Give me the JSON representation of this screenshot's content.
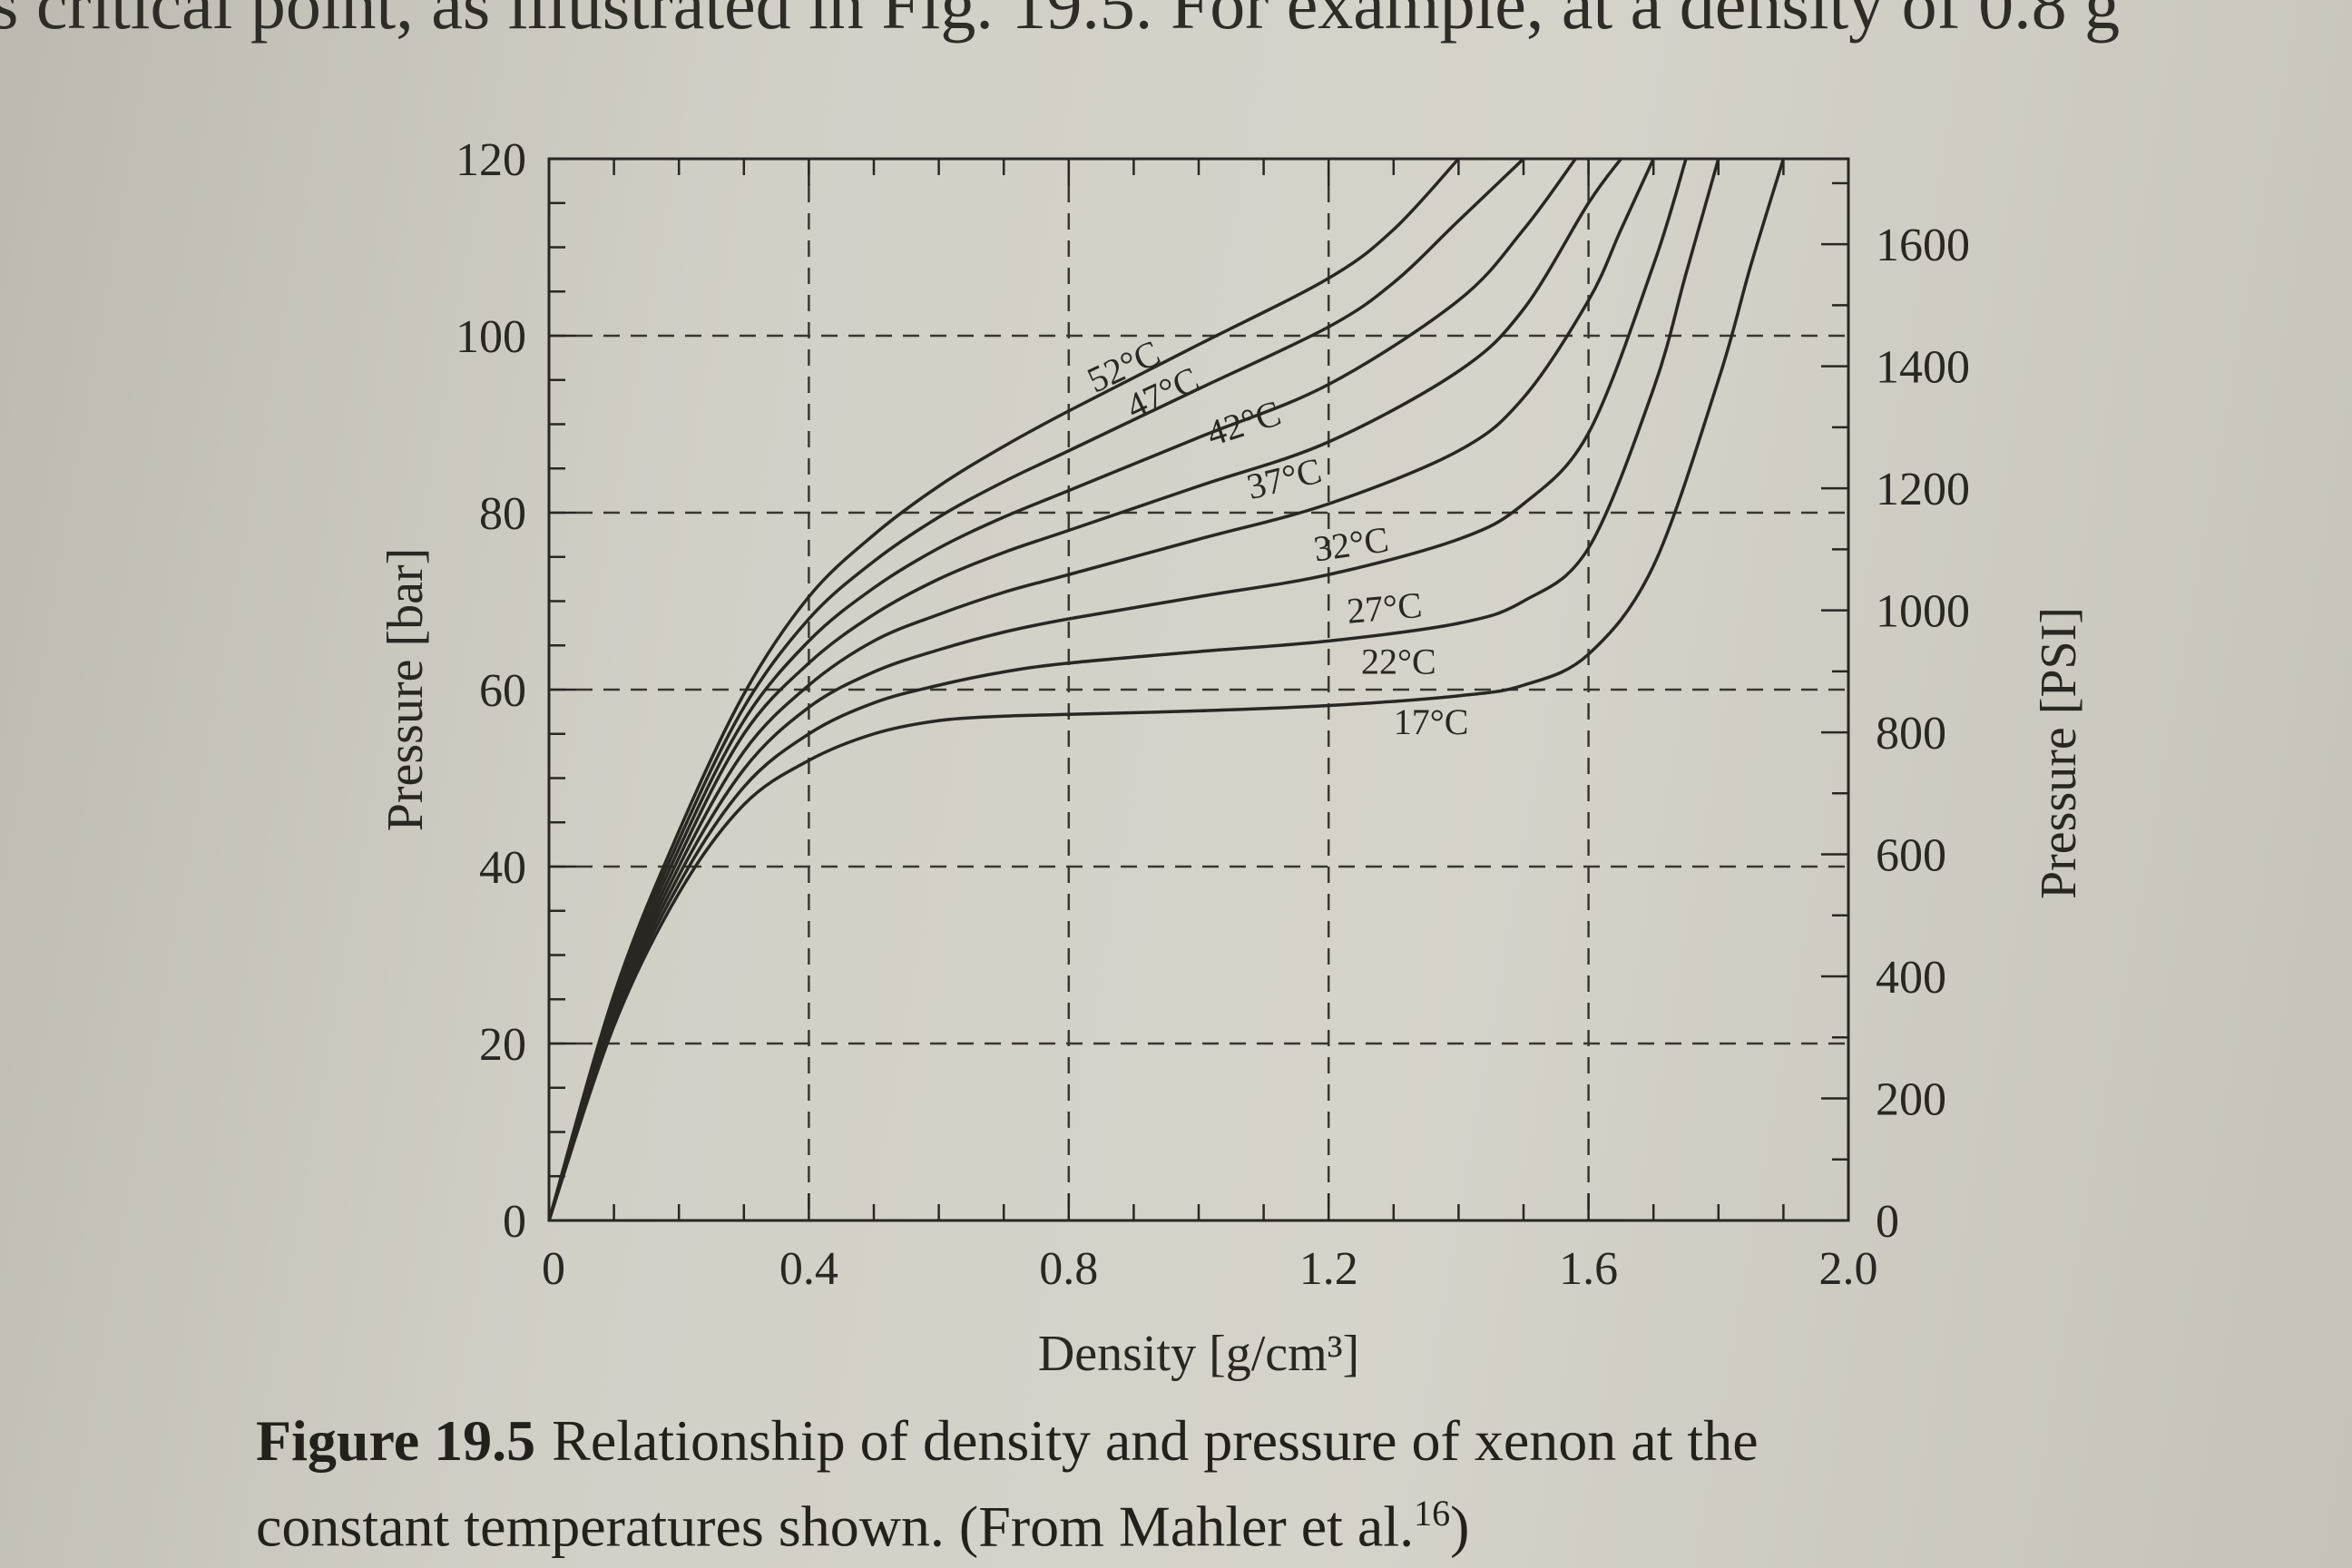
{
  "page": {
    "top_text": "s critical point, as illustrated in Fig. 19.5. For example, at a density of 0.8 g",
    "caption_label": "Figure 19.5",
    "caption_line1": "Relationship of density and pressure of xenon at the",
    "caption_line2": "constant temperatures shown. (From Mahler et al.",
    "caption_ref": "16",
    "caption_end": ")"
  },
  "chart_data": {
    "type": "line",
    "title": "",
    "xlabel": "Density [g/cm³]",
    "ylabel": "Pressure [bar]",
    "y2label": "Pressure [PSI]",
    "xlim": [
      0,
      2.0
    ],
    "ylim": [
      0,
      120
    ],
    "y2lim": [
      0,
      1740
    ],
    "x_ticks": [
      "0",
      "0.4",
      "0.8",
      "1.2",
      "1.6",
      "2.0"
    ],
    "y_ticks": [
      "0",
      "20",
      "40",
      "60",
      "80",
      "100",
      "120"
    ],
    "y2_ticks": [
      "0",
      "200",
      "400",
      "600",
      "800",
      "1000",
      "1200",
      "1400",
      "1600"
    ],
    "grid": true,
    "colors": {
      "line": "#2a2722",
      "grid": "#3a3630"
    },
    "series": [
      {
        "name": "17°C",
        "x": [
          0,
          0.1,
          0.2,
          0.3,
          0.4,
          0.5,
          0.6,
          0.7,
          0.8,
          1.0,
          1.2,
          1.4,
          1.5,
          1.6,
          1.7,
          1.8,
          1.85,
          1.9
        ],
        "y": [
          0,
          22,
          37,
          47,
          52,
          55,
          56.5,
          57,
          57.2,
          57.6,
          58.2,
          59.3,
          60.5,
          64,
          74,
          95,
          108,
          120
        ]
      },
      {
        "name": "22°C",
        "x": [
          0,
          0.1,
          0.2,
          0.3,
          0.4,
          0.5,
          0.6,
          0.7,
          0.8,
          1.0,
          1.2,
          1.4,
          1.5,
          1.6,
          1.7,
          1.75,
          1.8
        ],
        "y": [
          0,
          22.5,
          38,
          49,
          55,
          58.5,
          60.5,
          62,
          63,
          64.3,
          65.5,
          67.5,
          70,
          76,
          94,
          107,
          120
        ]
      },
      {
        "name": "27°C",
        "x": [
          0,
          0.1,
          0.2,
          0.3,
          0.4,
          0.5,
          0.6,
          0.7,
          0.8,
          1.0,
          1.2,
          1.4,
          1.5,
          1.6,
          1.7,
          1.75
        ],
        "y": [
          0,
          23,
          39,
          51,
          58,
          62,
          64.5,
          66.5,
          68,
          70.5,
          73,
          77,
          81,
          89,
          108,
          120
        ]
      },
      {
        "name": "32°C",
        "x": [
          0,
          0.1,
          0.2,
          0.3,
          0.4,
          0.5,
          0.6,
          0.7,
          0.8,
          1.0,
          1.2,
          1.4,
          1.5,
          1.6,
          1.65,
          1.7
        ],
        "y": [
          0,
          23.5,
          40,
          53,
          60.5,
          65.5,
          68.5,
          71,
          73,
          77,
          81,
          87,
          93,
          104,
          112,
          120
        ]
      },
      {
        "name": "37°C",
        "x": [
          0,
          0.1,
          0.2,
          0.3,
          0.4,
          0.5,
          0.6,
          0.7,
          0.8,
          1.0,
          1.2,
          1.4,
          1.5,
          1.6,
          1.65
        ],
        "y": [
          0,
          24,
          41,
          55,
          63,
          68.5,
          72.5,
          75.5,
          78,
          83,
          88,
          96,
          103,
          115,
          120
        ]
      },
      {
        "name": "42°C",
        "x": [
          0,
          0.1,
          0.2,
          0.3,
          0.4,
          0.5,
          0.6,
          0.7,
          0.8,
          1.0,
          1.2,
          1.4,
          1.5,
          1.58
        ],
        "y": [
          0,
          24.5,
          42,
          56.5,
          65.5,
          71.5,
          76,
          79.5,
          82.5,
          88.5,
          94.5,
          104,
          112,
          120
        ]
      },
      {
        "name": "47°C",
        "x": [
          0,
          0.1,
          0.2,
          0.3,
          0.4,
          0.5,
          0.6,
          0.7,
          0.8,
          1.0,
          1.2,
          1.3,
          1.4,
          1.5
        ],
        "y": [
          0,
          25,
          43,
          58,
          68,
          74.5,
          79.5,
          83.5,
          87,
          94,
          101,
          106,
          113,
          120
        ]
      },
      {
        "name": "52°C",
        "x": [
          0,
          0.1,
          0.2,
          0.3,
          0.4,
          0.5,
          0.6,
          0.7,
          0.8,
          1.0,
          1.2,
          1.3,
          1.4
        ],
        "y": [
          0,
          25.5,
          44,
          59.5,
          70.5,
          77.5,
          83,
          87.5,
          91.5,
          99,
          106.5,
          112,
          120
        ]
      }
    ],
    "labels": [
      {
        "text": "52°C",
        "x": 0.84,
        "y": 93.5,
        "rotate": -25
      },
      {
        "text": "47°C",
        "x": 0.9,
        "y": 90.5,
        "rotate": -25
      },
      {
        "text": "42°C",
        "x": 1.02,
        "y": 87.5,
        "rotate": -18
      },
      {
        "text": "37°C",
        "x": 1.08,
        "y": 81.5,
        "rotate": -14
      },
      {
        "text": "32°C",
        "x": 1.18,
        "y": 74.5,
        "rotate": -8
      },
      {
        "text": "27°C",
        "x": 1.23,
        "y": 67.5,
        "rotate": -5
      },
      {
        "text": "22°C",
        "x": 1.25,
        "y": 61.8,
        "rotate": 0
      },
      {
        "text": "17°C",
        "x": 1.3,
        "y": 55.0,
        "rotate": 0
      }
    ]
  }
}
